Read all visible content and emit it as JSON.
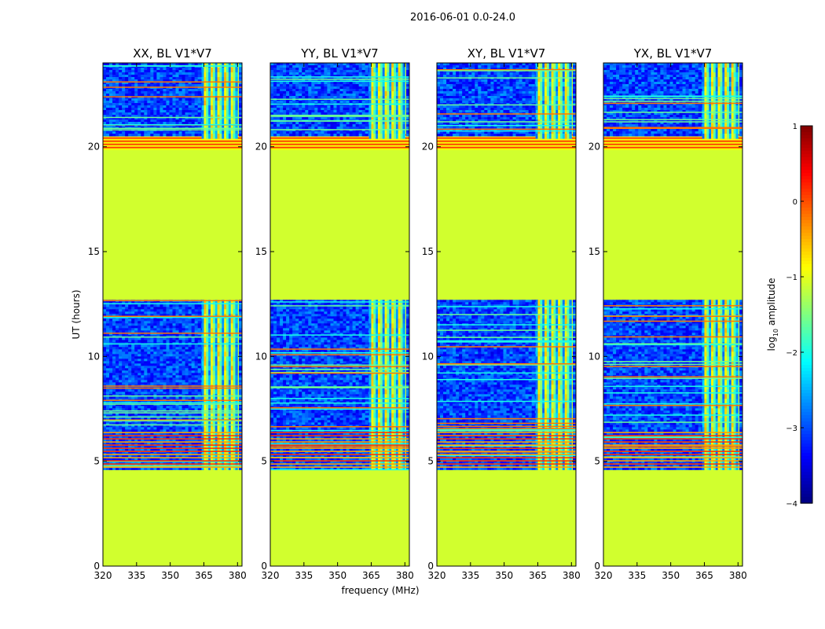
{
  "chart_data": {
    "type": "heatmap",
    "suptitle": "2016-06-01 0.0-24.0",
    "xlabel": "frequency (MHz)",
    "ylabel": "UT (hours)",
    "xlim": [
      320,
      382
    ],
    "ylim": [
      0,
      24
    ],
    "xticks": [
      320,
      335,
      350,
      365,
      380
    ],
    "yticks": [
      0,
      5,
      10,
      15,
      20
    ],
    "colormap": "jet",
    "colorbar": {
      "label": "log10 amplitude",
      "label_base": "log",
      "label_sub": "10",
      "label_rest": "amplitude",
      "range": [
        -4,
        1
      ],
      "ticks": [
        1,
        0,
        -1,
        -2,
        -3,
        -4
      ],
      "tick_labels": [
        "1",
        "0",
        "−1",
        "−2",
        "−3",
        "−4"
      ]
    },
    "panels": [
      {
        "title": "XX, BL V1*V7",
        "rfi_band_mhz": [
          364,
          380
        ]
      },
      {
        "title": "YY, BL V1*V7",
        "rfi_band_mhz": [
          364,
          380
        ]
      },
      {
        "title": "XY, BL V1*V7",
        "rfi_band_mhz": [
          364,
          380
        ]
      },
      {
        "title": "YX, BL V1*V7",
        "rfi_band_mhz": [
          364,
          380
        ]
      }
    ],
    "data_segments_ut_hours": [
      {
        "start": 0.0,
        "end": 4.6,
        "level": -1.1,
        "note": "flagged / constant"
      },
      {
        "start": 4.6,
        "end": 6.4,
        "level": -3.3,
        "note": "active, strong RFI stripes"
      },
      {
        "start": 6.4,
        "end": 12.7,
        "level": -3.3,
        "note": "active"
      },
      {
        "start": 12.7,
        "end": 19.9,
        "level": -1.1,
        "note": "flagged / constant"
      },
      {
        "start": 19.9,
        "end": 20.6,
        "level": -0.3,
        "note": "striped"
      },
      {
        "start": 20.6,
        "end": 24.0,
        "level": -3.3,
        "note": "active"
      }
    ]
  }
}
